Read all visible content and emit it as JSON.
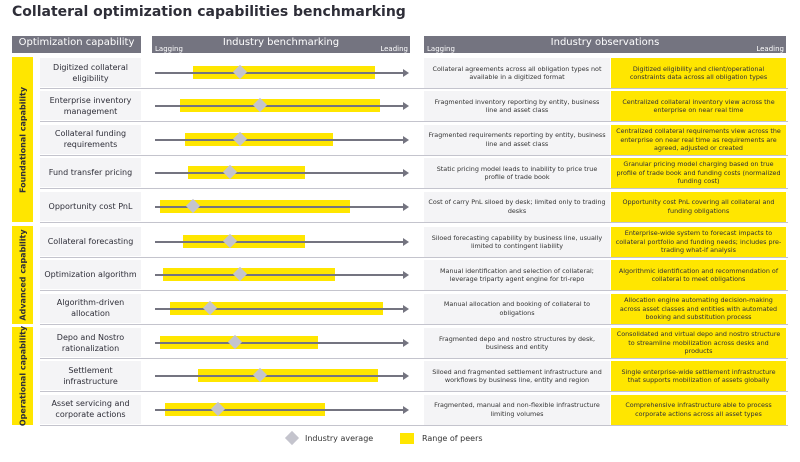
{
  "title": "Collateral optimization capabilities benchmarking",
  "headers": {
    "capability": "Optimization capability",
    "benchmarking": "Industry benchmarking",
    "observations": "Industry observations",
    "lagging": "Lagging",
    "leading": "Leading"
  },
  "colors": {
    "peer_range": "#ffe600",
    "industry_average": "#c4c4cd",
    "header": "#747480"
  },
  "legend": {
    "average": "Industry average",
    "peers": "Range of peers"
  },
  "chart_data": {
    "type": "range-bar with markers",
    "scale": "0 = Lagging, 100 = Leading (unlabeled, estimated)",
    "xlim": [
      0,
      100
    ],
    "groups": [
      {
        "name": "Foundational capability",
        "rows": [
          {
            "capability": "Digitized collateral eligibility",
            "peer_range": [
              15,
              88
            ],
            "industry_average": 34,
            "lagging": "Collateral agreements across all obligation types not available in a digitized format",
            "leading": "Digitized eligibility and client/operational constraints data across all obligation types"
          },
          {
            "capability": "Enterprise inventory management",
            "peer_range": [
              10,
              90
            ],
            "industry_average": 42,
            "lagging": "Fragmented inventory reporting by entity, business line and asset class",
            "leading": "Centralized collateral inventory view across the enterprise on near real time"
          },
          {
            "capability": "Collateral funding requirements",
            "peer_range": [
              12,
              71
            ],
            "industry_average": 34,
            "lagging": "Fragmented requirements reporting by entity, business line and asset class",
            "leading": "Centralized collateral requirements view across the enterprise on near real time as requirements are agreed, adjusted or created"
          },
          {
            "capability": "Fund transfer pricing",
            "peer_range": [
              13,
              60
            ],
            "industry_average": 30,
            "lagging": "Static pricing model leads to inability to price true profile of trade book",
            "leading": "Granular pricing model charging based on true profile of trade book and funding costs (normalized funding cost)"
          },
          {
            "capability": "Opportunity cost PnL",
            "peer_range": [
              2,
              78
            ],
            "industry_average": 15,
            "lagging": "Cost of carry PnL siloed by desk; limited only to trading desks",
            "leading": "Opportunity cost PnL covering all collateral and funding obligations"
          }
        ]
      },
      {
        "name": "Advanced capability",
        "rows": [
          {
            "capability": "Collateral forecasting",
            "peer_range": [
              11,
              60
            ],
            "industry_average": 30,
            "lagging": "Siloed forecasting capability by business line, usually limited to contingent liability",
            "leading": "Enterprise-wide system to forecast impacts to collateral portfolio and funding needs; includes pre-trading what-if analysis"
          },
          {
            "capability": "Optimization algorithm",
            "peer_range": [
              3,
              72
            ],
            "industry_average": 34,
            "lagging": "Manual identification and selection of collateral; leverage triparty agent engine for tri-repo",
            "leading": "Algorithmic identification and recommendation of collateral to meet obligations"
          },
          {
            "capability": "Algorithm-driven allocation",
            "peer_range": [
              6,
              91
            ],
            "industry_average": 22,
            "lagging": "Manual allocation and booking of collateral to obligations",
            "leading": "Allocation engine automating decision-making across asset classes and entities with automated booking and substitution process"
          }
        ]
      },
      {
        "name": "Operational capability",
        "rows": [
          {
            "capability": "Depo and Nostro rationalization",
            "peer_range": [
              2,
              65
            ],
            "industry_average": 32,
            "lagging": "Fragmented depo and nostro structures by desk, business and entity",
            "leading": "Consolidated and virtual depo and nostro structure to streamline mobilization across desks and products"
          },
          {
            "capability": "Settlement infrastructure",
            "peer_range": [
              17,
              89
            ],
            "industry_average": 42,
            "lagging": "Siloed and fragmented settlement infrastructure and workflows by business line, entity and region",
            "leading": "Single enterprise-wide settlement infrastructure that supports mobilization of assets globally"
          },
          {
            "capability": "Asset servicing and corporate actions",
            "peer_range": [
              4,
              68
            ],
            "industry_average": 25,
            "lagging": "Fragmented, manual and non-flexible infrastructure limiting volumes",
            "leading": "Comprehensive infrastructure able to process corporate actions across all asset types"
          }
        ]
      }
    ]
  }
}
